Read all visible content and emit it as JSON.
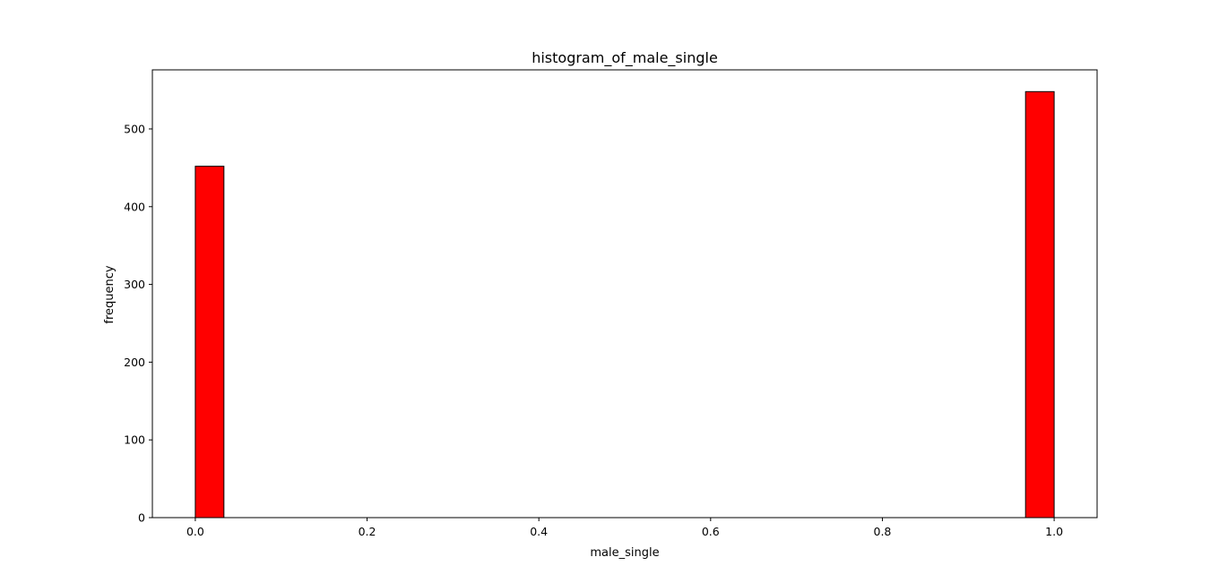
{
  "chart_data": {
    "type": "bar",
    "title": "histogram_of_male_single",
    "xlabel": "male_single",
    "ylabel": "frequency",
    "xlim": [
      -0.05,
      1.05
    ],
    "ylim": [
      0,
      576
    ],
    "x_ticks": [
      0.0,
      0.2,
      0.4,
      0.6,
      0.8,
      1.0
    ],
    "x_tick_labels": [
      "0.0",
      "0.2",
      "0.4",
      "0.6",
      "0.8",
      "1.0"
    ],
    "y_ticks": [
      0,
      100,
      200,
      300,
      400,
      500
    ],
    "y_tick_labels": [
      "0",
      "100",
      "200",
      "300",
      "400",
      "500"
    ],
    "bins": [
      {
        "x0": 0.0,
        "x1": 0.0333,
        "count": 452
      },
      {
        "x0": 0.9667,
        "x1": 1.0,
        "count": 548
      }
    ],
    "grid": false,
    "colors": {
      "bar_fill": "#ff0000",
      "bar_edge": "#000000"
    }
  }
}
